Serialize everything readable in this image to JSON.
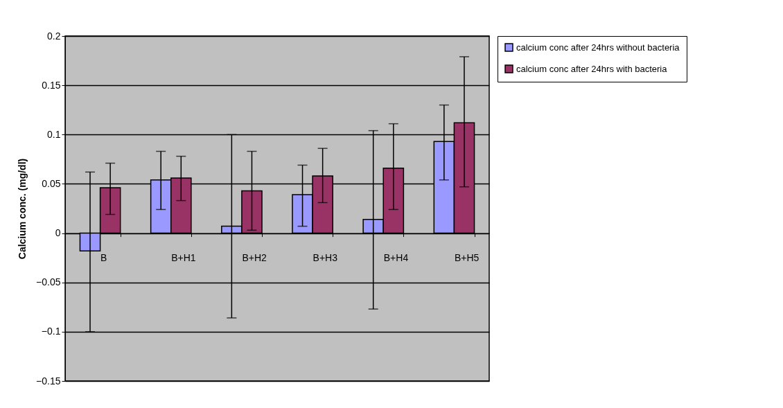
{
  "chart_data": {
    "type": "bar",
    "ylabel": "Calcium conc. (mg/dl)",
    "categories": [
      "B",
      "B+H1",
      "B+H2",
      "B+H3",
      "B+H4",
      "B+H5"
    ],
    "series": [
      {
        "name": "calcium conc after 24hrs without bacteria",
        "color": "#9999ff",
        "values": [
          -0.018,
          0.054,
          0.007,
          0.039,
          0.014,
          0.093
        ],
        "errors": [
          [
            -0.1,
            0.062
          ],
          [
            0.024,
            0.083
          ],
          [
            -0.086,
            0.1
          ],
          [
            0.007,
            0.069
          ],
          [
            -0.077,
            0.104
          ],
          [
            0.054,
            0.13
          ]
        ]
      },
      {
        "name": "calcium conc after 24hrs with bacteria",
        "color": "#993366",
        "values": [
          0.046,
          0.056,
          0.043,
          0.058,
          0.066,
          0.112
        ],
        "errors": [
          [
            0.019,
            0.071
          ],
          [
            0.033,
            0.078
          ],
          [
            0.003,
            0.083
          ],
          [
            0.031,
            0.086
          ],
          [
            0.024,
            0.111
          ],
          [
            0.047,
            0.179
          ]
        ]
      }
    ],
    "ylim": [
      -0.15,
      0.2
    ],
    "yticks": [
      -0.15,
      -0.1,
      -0.05,
      0,
      0.05,
      0.1,
      0.15,
      0.2
    ],
    "grid": "y",
    "legend": "right"
  }
}
